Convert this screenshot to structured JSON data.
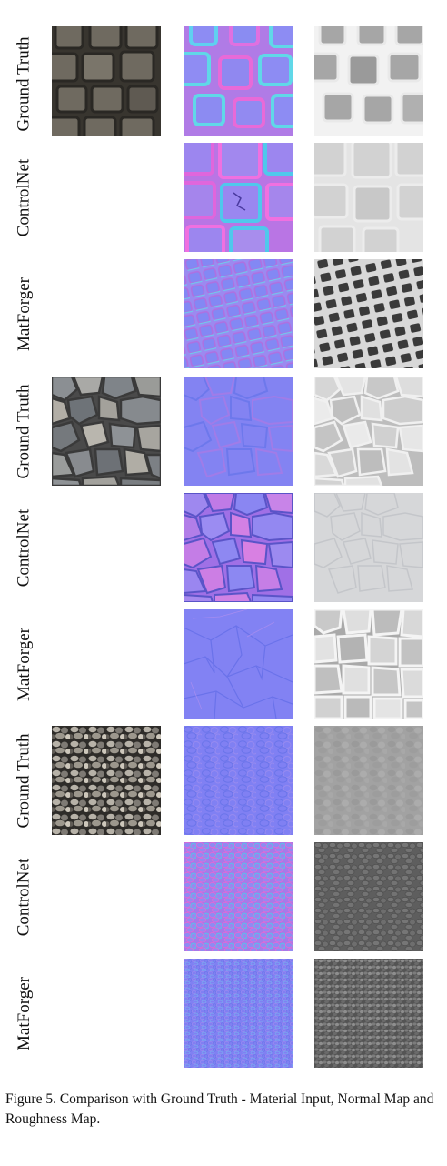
{
  "rows": [
    {
      "label": "Ground Truth",
      "material": "square cobblestone",
      "has_input": true
    },
    {
      "label": "ControlNet",
      "material": "square cobblestone",
      "has_input": false
    },
    {
      "label": "MatForger",
      "material": "square cobblestone",
      "has_input": false
    },
    {
      "label": "Ground Truth",
      "material": "flagstone",
      "has_input": true
    },
    {
      "label": "ControlNet",
      "material": "flagstone",
      "has_input": false
    },
    {
      "label": "MatForger",
      "material": "flagstone",
      "has_input": false
    },
    {
      "label": "Ground Truth",
      "material": "pebbles",
      "has_input": true
    },
    {
      "label": "ControlNet",
      "material": "pebbles",
      "has_input": false
    },
    {
      "label": "MatForger",
      "material": "pebbles",
      "has_input": false
    }
  ],
  "caption": "Figure 5. Comparison with Ground Truth - Material Input, Normal Map and Roughness Map.",
  "colors": {
    "normal_base": "#7f7ff7",
    "normal_controlnet": "#a873e8",
    "rough_light": "#dcdcdc",
    "rough_dark": "#3a3a3a"
  }
}
